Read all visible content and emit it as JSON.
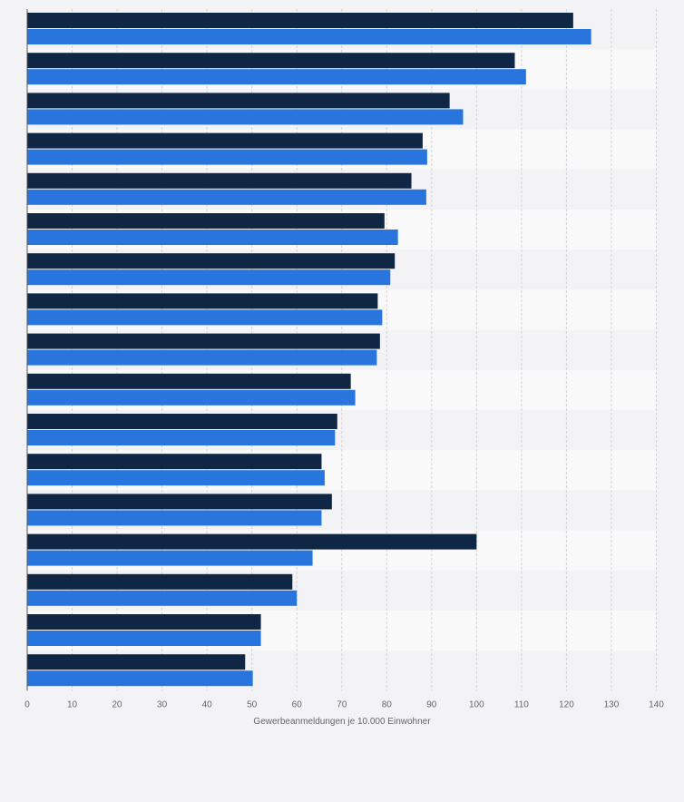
{
  "chart_data": {
    "type": "bar",
    "orientation": "horizontal",
    "categories": [
      "",
      "",
      "",
      "",
      "",
      "",
      "",
      "",
      "",
      "",
      "",
      "",
      "",
      "",
      "",
      "",
      ""
    ],
    "series": [
      {
        "color": "#0f2744",
        "values": [
          121.5,
          108.5,
          94,
          88,
          85.5,
          79.5,
          81.8,
          78,
          78.5,
          72,
          69,
          65.5,
          67.8,
          100,
          59,
          52,
          48.5
        ]
      },
      {
        "color": "#2876dd",
        "values": [
          125.5,
          111,
          97,
          89,
          88.8,
          82.5,
          80.8,
          79,
          77.8,
          73,
          68.5,
          66.2,
          65.5,
          63.5,
          60,
          52,
          50.2
        ]
      }
    ],
    "xlim": [
      0,
      140
    ],
    "xticks": [
      0,
      10,
      20,
      30,
      40,
      50,
      60,
      70,
      80,
      90,
      100,
      110,
      120,
      130,
      140
    ],
    "xlabel": "Gewerbeanmeldungen je 10.000 Einwohner",
    "grid": true,
    "legend": "none"
  }
}
